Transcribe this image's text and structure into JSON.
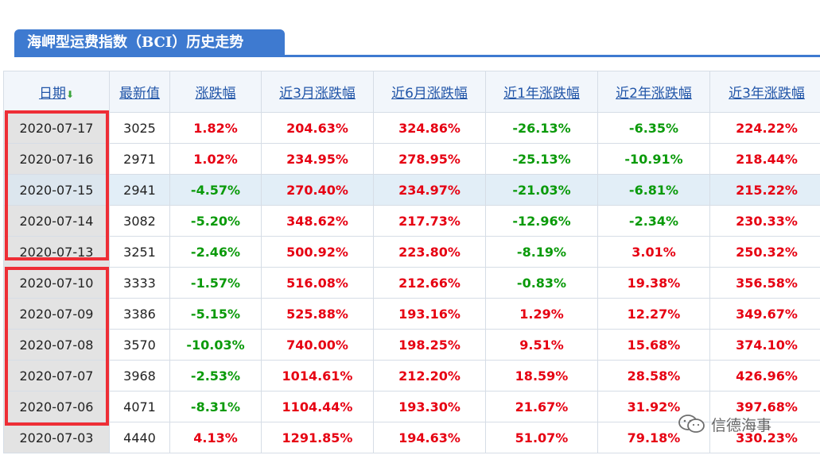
{
  "title": "海岬型运费指数（BCI）历史走势",
  "columns": [
    "日期",
    "最新值",
    "涨跌幅",
    "近3月涨跌幅",
    "近6月涨跌幅",
    "近1年涨跌幅",
    "近2年涨跌幅",
    "近3年涨跌幅"
  ],
  "rows": [
    [
      "2020-07-17",
      "3025",
      "1.82%",
      "204.63%",
      "324.86%",
      "-26.13%",
      "-6.35%",
      "224.22%"
    ],
    [
      "2020-07-16",
      "2971",
      "1.02%",
      "234.95%",
      "278.95%",
      "-25.13%",
      "-10.91%",
      "218.44%"
    ],
    [
      "2020-07-15",
      "2941",
      "-4.57%",
      "270.40%",
      "234.97%",
      "-21.03%",
      "-6.81%",
      "215.22%"
    ],
    [
      "2020-07-14",
      "3082",
      "-5.20%",
      "348.62%",
      "217.73%",
      "-12.96%",
      "-2.34%",
      "230.33%"
    ],
    [
      "2020-07-13",
      "3251",
      "-2.46%",
      "500.92%",
      "223.80%",
      "-8.19%",
      "3.01%",
      "250.32%"
    ],
    [
      "2020-07-10",
      "3333",
      "-1.57%",
      "516.08%",
      "212.66%",
      "-0.83%",
      "19.38%",
      "356.58%"
    ],
    [
      "2020-07-09",
      "3386",
      "-5.15%",
      "525.88%",
      "193.16%",
      "1.29%",
      "12.27%",
      "349.67%"
    ],
    [
      "2020-07-08",
      "3570",
      "-10.03%",
      "740.00%",
      "198.25%",
      "9.51%",
      "15.68%",
      "374.10%"
    ],
    [
      "2020-07-07",
      "3968",
      "-2.53%",
      "1014.61%",
      "212.20%",
      "18.59%",
      "28.58%",
      "426.96%"
    ],
    [
      "2020-07-06",
      "4071",
      "-8.31%",
      "1104.44%",
      "193.30%",
      "21.67%",
      "31.92%",
      "397.68%"
    ],
    [
      "2020-07-03",
      "4440",
      "4.13%",
      "1291.85%",
      "194.63%",
      "51.07%",
      "79.18%",
      "330.23%"
    ]
  ],
  "highlighted_row": 2,
  "sort_icon": "sort-down-arrow-icon",
  "colors": {
    "accent": "#3e7ad0",
    "up": "#e60012",
    "down": "#0a9a0a",
    "annotation": "#ee2e36"
  },
  "watermark": {
    "icon": "wechat-icon",
    "text": "信德海事"
  }
}
